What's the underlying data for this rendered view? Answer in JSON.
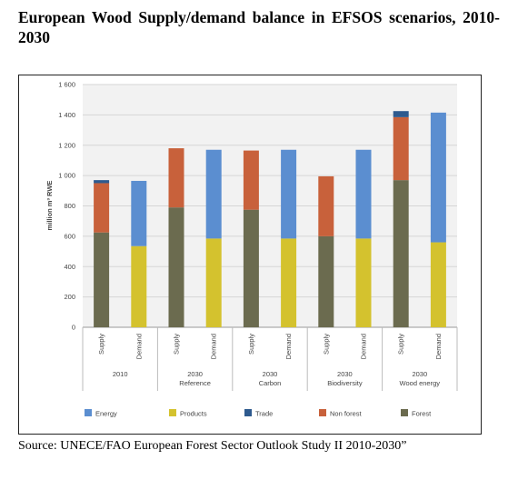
{
  "title": "European Wood Supply/demand balance in EFSOS scenarios, 2010-2030",
  "source": "Source: UNECE/FAO European Forest Sector Outlook Study II 2010-2030”",
  "chart_data": {
    "type": "bar",
    "stacked": true,
    "ylabel": "million m³ RWE",
    "ylim": [
      0,
      1600
    ],
    "yticks": [
      0,
      200,
      400,
      600,
      800,
      1000,
      1200,
      1400,
      1600
    ],
    "ytick_labels": [
      "0",
      "200",
      "400",
      "600",
      "800",
      "1 000",
      "1 200",
      "1 400",
      "1 600"
    ],
    "grid": true,
    "legend_position": "bottom",
    "groups": [
      {
        "label": "2010",
        "sublabel": ""
      },
      {
        "label": "2030",
        "sublabel": "Reference"
      },
      {
        "label": "2030",
        "sublabel": "Carbon"
      },
      {
        "label": "2030",
        "sublabel": "Biodiversity"
      },
      {
        "label": "2030",
        "sublabel": "Wood energy"
      }
    ],
    "categories": [
      "Supply",
      "Demand",
      "Supply",
      "Demand",
      "Supply",
      "Demand",
      "Supply",
      "Demand",
      "Supply",
      "Demand"
    ],
    "series": [
      {
        "name": "Forest",
        "color": "#6b6b4f",
        "values": [
          625,
          0,
          790,
          0,
          775,
          0,
          600,
          0,
          970,
          0
        ]
      },
      {
        "name": "Non forest",
        "color": "#c8613b",
        "values": [
          325,
          0,
          390,
          0,
          390,
          0,
          395,
          0,
          415,
          0
        ]
      },
      {
        "name": "Trade",
        "color": "#2e5a8e",
        "values": [
          20,
          0,
          0,
          0,
          0,
          0,
          0,
          0,
          40,
          0
        ]
      },
      {
        "name": "Products",
        "color": "#d4c22e",
        "values": [
          0,
          535,
          0,
          585,
          0,
          585,
          0,
          585,
          0,
          560
        ]
      },
      {
        "name": "Energy",
        "color": "#5b8ed0",
        "values": [
          0,
          430,
          0,
          585,
          0,
          585,
          0,
          585,
          0,
          855
        ]
      }
    ],
    "legend": [
      "Energy",
      "Products",
      "Trade",
      "Non forest",
      "Forest"
    ]
  }
}
